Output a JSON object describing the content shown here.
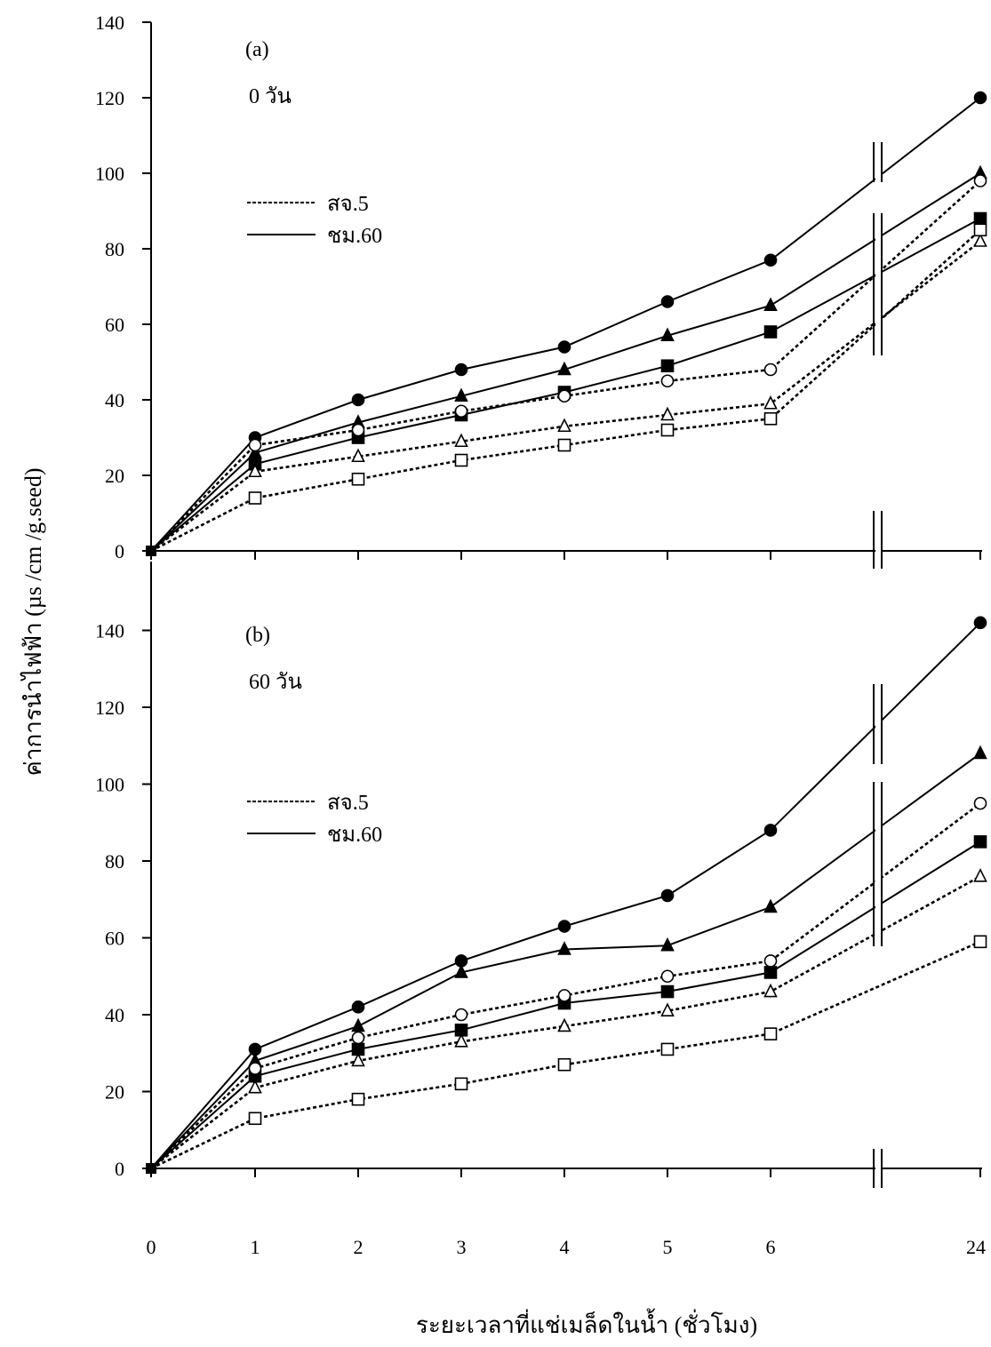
{
  "chart_data": {
    "type": "line",
    "xlabel": "ระยะเวลาที่แช่เมล็ดในน้ำ (ชั่วโมง)",
    "ylabel": "ค่าการนำไฟฟ้า (µs /cm /g.seed)",
    "x_ticks": [
      "0",
      "1",
      "2",
      "3",
      "4",
      "5",
      "6",
      "24"
    ],
    "x_break": "between 6 and 24",
    "panels": [
      {
        "label": "(a)",
        "subtitle": "0 วัน",
        "ylim": [
          0,
          140
        ],
        "yticks": [
          0,
          20,
          40,
          60,
          80,
          100,
          120,
          140
        ],
        "legend": [
          {
            "label": "สจ.5",
            "style": "dashed"
          },
          {
            "label": "ชม.60",
            "style": "solid"
          }
        ],
        "series": [
          {
            "variety": "ชม.60",
            "style": "solid",
            "marker": "filled-circle",
            "x": [
              0,
              1,
              2,
              3,
              4,
              5,
              6,
              24
            ],
            "y": [
              0,
              30,
              40,
              48,
              54,
              66,
              77,
              120
            ]
          },
          {
            "variety": "ชม.60",
            "style": "solid",
            "marker": "filled-triangle",
            "x": [
              0,
              1,
              2,
              3,
              4,
              5,
              6,
              24
            ],
            "y": [
              0,
              26,
              34,
              41,
              48,
              57,
              65,
              100
            ]
          },
          {
            "variety": "ชม.60",
            "style": "solid",
            "marker": "filled-square",
            "x": [
              0,
              1,
              2,
              3,
              4,
              5,
              6,
              24
            ],
            "y": [
              0,
              23,
              30,
              36,
              42,
              49,
              58,
              88
            ]
          },
          {
            "variety": "สจ.5",
            "style": "dashed",
            "marker": "open-circle",
            "x": [
              0,
              1,
              2,
              3,
              4,
              5,
              6,
              24
            ],
            "y": [
              0,
              28,
              32,
              37,
              41,
              45,
              48,
              98
            ]
          },
          {
            "variety": "สจ.5",
            "style": "dashed",
            "marker": "open-triangle",
            "x": [
              0,
              1,
              2,
              3,
              4,
              5,
              6,
              24
            ],
            "y": [
              0,
              21,
              25,
              29,
              33,
              36,
              39,
              82
            ]
          },
          {
            "variety": "สจ.5",
            "style": "dashed",
            "marker": "open-square",
            "x": [
              0,
              1,
              2,
              3,
              4,
              5,
              6,
              24
            ],
            "y": [
              0,
              14,
              19,
              24,
              28,
              32,
              35,
              85
            ]
          }
        ]
      },
      {
        "label": "(b)",
        "subtitle": "60 วัน",
        "ylim": [
          0,
          150
        ],
        "yticks": [
          0,
          20,
          40,
          60,
          80,
          100,
          120,
          140
        ],
        "legend": [
          {
            "label": "สจ.5",
            "style": "dashed"
          },
          {
            "label": "ชม.60",
            "style": "solid"
          }
        ],
        "series": [
          {
            "variety": "ชม.60",
            "style": "solid",
            "marker": "filled-circle",
            "x": [
              0,
              1,
              2,
              3,
              4,
              5,
              6,
              24
            ],
            "y": [
              0,
              31,
              42,
              54,
              63,
              71,
              88,
              142
            ]
          },
          {
            "variety": "ชม.60",
            "style": "solid",
            "marker": "filled-triangle",
            "x": [
              0,
              1,
              2,
              3,
              4,
              5,
              6,
              24
            ],
            "y": [
              0,
              28,
              37,
              51,
              57,
              58,
              68,
              108
            ]
          },
          {
            "variety": "ชม.60",
            "style": "solid",
            "marker": "filled-square",
            "x": [
              0,
              1,
              2,
              3,
              4,
              5,
              6,
              24
            ],
            "y": [
              0,
              24,
              31,
              36,
              43,
              46,
              51,
              85
            ]
          },
          {
            "variety": "สจ.5",
            "style": "dashed",
            "marker": "open-circle",
            "x": [
              0,
              1,
              2,
              3,
              4,
              5,
              6,
              24
            ],
            "y": [
              0,
              26,
              34,
              40,
              45,
              50,
              54,
              95
            ]
          },
          {
            "variety": "สจ.5",
            "style": "dashed",
            "marker": "open-triangle",
            "x": [
              0,
              1,
              2,
              3,
              4,
              5,
              6,
              24
            ],
            "y": [
              0,
              21,
              28,
              33,
              37,
              41,
              46,
              76
            ]
          },
          {
            "variety": "สจ.5",
            "style": "dashed",
            "marker": "open-square",
            "x": [
              0,
              1,
              2,
              3,
              4,
              5,
              6,
              24
            ],
            "y": [
              0,
              13,
              18,
              22,
              27,
              31,
              35,
              59
            ]
          }
        ]
      }
    ]
  }
}
